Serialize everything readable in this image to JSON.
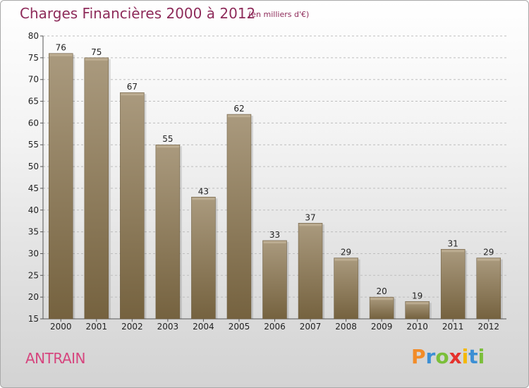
{
  "header": {
    "title": "Charges Financières 2000 à 2012",
    "subtitle": "(en milliers d'€)"
  },
  "footer": {
    "commune": "ANTRAIN",
    "logo": "Proxiti"
  },
  "colors": {
    "title": "#8e2b5a",
    "commune": "#d6457e",
    "bar_light": "#a8977a",
    "bar_dark": "#7a6648"
  },
  "chart_data": {
    "type": "bar",
    "title": "Charges Financières 2000 à 2012",
    "subtitle": "(en milliers d'€)",
    "xlabel": "",
    "ylabel": "",
    "categories": [
      "2000",
      "2001",
      "2002",
      "2003",
      "2004",
      "2005",
      "2006",
      "2007",
      "2008",
      "2009",
      "2010",
      "2011",
      "2012"
    ],
    "values": [
      76,
      75,
      67,
      55,
      43,
      62,
      33,
      37,
      29,
      20,
      19,
      31,
      29
    ],
    "ylim": [
      15,
      80
    ],
    "yticks": [
      15,
      20,
      25,
      30,
      35,
      40,
      45,
      50,
      55,
      60,
      65,
      70,
      75,
      80
    ],
    "grid": true,
    "data_labels": true
  }
}
